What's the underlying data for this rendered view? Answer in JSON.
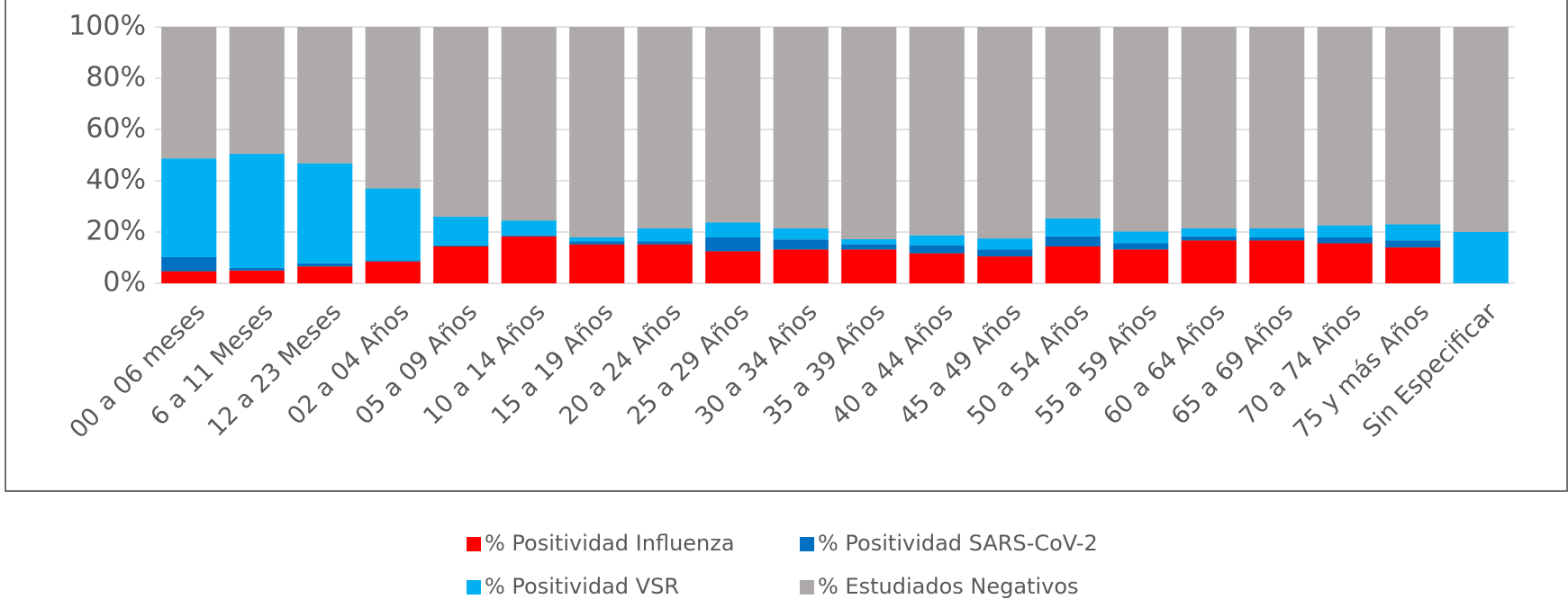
{
  "chart_data": {
    "type": "stacked_bar",
    "categories": [
      "00 a 06 meses",
      "6 a 11 Meses",
      "12 a 23 Meses",
      "02 a 04 Años",
      "05 a 09 Años",
      "10 a 14 Años",
      "15 a 19 Años",
      "20 a 24 Años",
      "25 a 29 Años",
      "30 a 34 Años",
      "35 a 39 Años",
      "40 a 44 Años",
      "45 a 49 Años",
      "50 a 54 Años",
      "55 a 59 Años",
      "60 a 64 Años",
      "65 a 69 Años",
      "70 a 74 Años",
      "75 y más Años",
      "Sin Especificar"
    ],
    "series": [
      {
        "name": "% Positividad Influenza",
        "color": "#ff0000",
        "values": [
          4.7,
          5,
          6.6,
          8.5,
          14.4,
          18.3,
          15.2,
          15.2,
          12.5,
          13.2,
          13.2,
          11.7,
          10.5,
          14.4,
          13.2,
          16.7,
          16.7,
          15.6,
          14,
          0
        ]
      },
      {
        "name": "% Positividad SARS-CoV-2",
        "color": "#0070c0",
        "values": [
          5.5,
          1,
          1.2,
          0.5,
          0.4,
          0.4,
          1.1,
          1.1,
          5.4,
          3.9,
          2,
          3.1,
          2.7,
          3.9,
          2.4,
          1.6,
          1.2,
          2.3,
          2.7,
          0
        ]
      },
      {
        "name": "% Positividad VSR",
        "color": "#00b0f0",
        "values": [
          38.5,
          44.5,
          39,
          28,
          11.2,
          5.8,
          1.6,
          5.1,
          5.8,
          4.3,
          2,
          3.9,
          4.3,
          7,
          4.6,
          3.1,
          3.5,
          4.7,
          6.3,
          20
        ]
      },
      {
        "name": "% Estudiados Negativos",
        "color": "#aeaaaa",
        "values": [
          51.3,
          49.5,
          53.2,
          63,
          74,
          75.5,
          82.1,
          78.6,
          76.3,
          78.6,
          82.8,
          81.3,
          82.5,
          74.7,
          79.8,
          78.6,
          78.6,
          77.4,
          77,
          80
        ]
      }
    ],
    "ylim": [
      0,
      100
    ],
    "yticks": [
      {
        "value": 0,
        "label": "0%"
      },
      {
        "value": 20,
        "label": "20%"
      },
      {
        "value": 40,
        "label": "40%"
      },
      {
        "value": 60,
        "label": "60%"
      },
      {
        "value": 80,
        "label": "80%"
      },
      {
        "value": 100,
        "label": "100%"
      }
    ],
    "grid": true
  }
}
